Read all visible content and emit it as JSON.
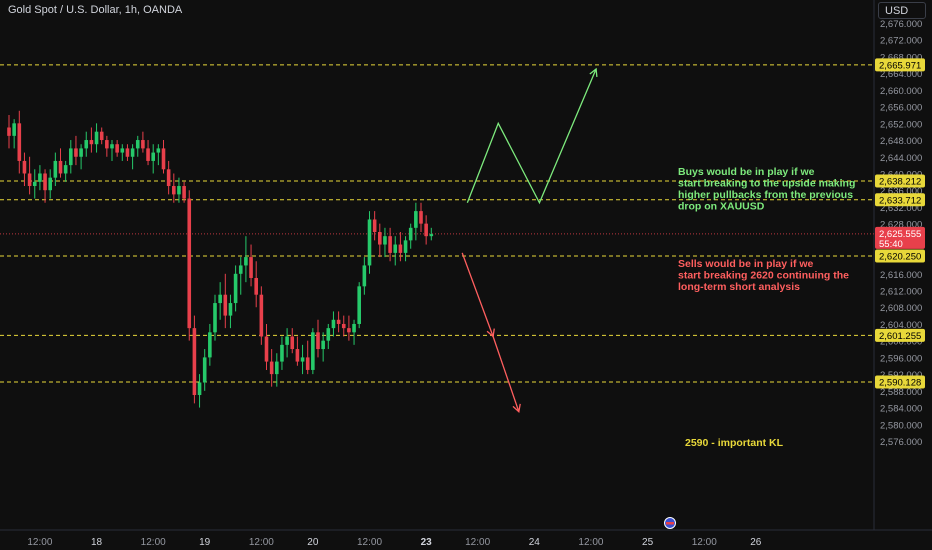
{
  "header": {
    "title": "Gold Spot / U.S. Dollar, 1h, OANDA",
    "currency": "USD"
  },
  "colors": {
    "background": "#0f0f0f",
    "up": "#26c96a",
    "down": "#e8404b",
    "level": "#e8d83a",
    "buy": "#7dea7d",
    "sell": "#ff5f5f",
    "text": "#b2b5be"
  },
  "chart_data": {
    "type": "candlestick",
    "ylim": [
      2574,
      2678
    ],
    "yticks": [
      2576,
      2580,
      2584,
      2588,
      2592,
      2596,
      2600,
      2604,
      2608,
      2612,
      2616,
      2620,
      2624,
      2628,
      2632,
      2636,
      2640,
      2644,
      2648,
      2652,
      2656,
      2660,
      2664,
      2668,
      2672,
      2676
    ],
    "xticks": [
      {
        "slot": 6,
        "label": "12:00"
      },
      {
        "slot": 17,
        "label": "18"
      },
      {
        "slot": 28,
        "label": "12:00"
      },
      {
        "slot": 38,
        "label": "19"
      },
      {
        "slot": 49,
        "label": "12:00"
      },
      {
        "slot": 59,
        "label": "20"
      },
      {
        "slot": 70,
        "label": "12:00"
      },
      {
        "slot": 81,
        "label": "23"
      },
      {
        "slot": 91,
        "label": "12:00"
      },
      {
        "slot": 102,
        "label": "24"
      },
      {
        "slot": 113,
        "label": "12:00"
      },
      {
        "slot": 124,
        "label": "25"
      },
      {
        "slot": 135,
        "label": "12:00"
      },
      {
        "slot": 145,
        "label": "26"
      }
    ],
    "candles": [
      [
        2651,
        2654,
        2646,
        2649
      ],
      [
        2649,
        2653,
        2646,
        2652
      ],
      [
        2652,
        2655,
        2640,
        2643
      ],
      [
        2643,
        2645,
        2637,
        2640
      ],
      [
        2640,
        2644,
        2635,
        2637
      ],
      [
        2637,
        2641,
        2634,
        2638
      ],
      [
        2638,
        2642,
        2636,
        2640
      ],
      [
        2640,
        2641,
        2633,
        2636
      ],
      [
        2636,
        2641,
        2634,
        2639
      ],
      [
        2639,
        2645,
        2637,
        2643
      ],
      [
        2643,
        2646,
        2639,
        2640
      ],
      [
        2640,
        2643,
        2638,
        2642
      ],
      [
        2642,
        2648,
        2640,
        2646
      ],
      [
        2646,
        2649,
        2642,
        2644
      ],
      [
        2644,
        2647,
        2641,
        2646
      ],
      [
        2646,
        2650,
        2644,
        2648
      ],
      [
        2648,
        2651,
        2645,
        2647
      ],
      [
        2647,
        2652,
        2645,
        2650
      ],
      [
        2650,
        2651,
        2647,
        2648
      ],
      [
        2648,
        2649,
        2644,
        2646
      ],
      [
        2646,
        2648,
        2643,
        2647
      ],
      [
        2647,
        2648,
        2644,
        2645
      ],
      [
        2645,
        2647,
        2643,
        2646
      ],
      [
        2646,
        2647,
        2643,
        2644
      ],
      [
        2644,
        2647,
        2641,
        2646
      ],
      [
        2646,
        2649,
        2644,
        2648
      ],
      [
        2648,
        2650,
        2645,
        2646
      ],
      [
        2646,
        2648,
        2642,
        2643
      ],
      [
        2643,
        2647,
        2640,
        2645
      ],
      [
        2645,
        2647,
        2642,
        2646
      ],
      [
        2646,
        2648,
        2640,
        2641
      ],
      [
        2641,
        2643,
        2635,
        2637
      ],
      [
        2637,
        2640,
        2633,
        2635
      ],
      [
        2635,
        2639,
        2633,
        2637
      ],
      [
        2637,
        2638,
        2633,
        2634
      ],
      [
        2634,
        2636,
        2600,
        2603
      ],
      [
        2603,
        2606,
        2585,
        2587
      ],
      [
        2587,
        2592,
        2584,
        2590
      ],
      [
        2590,
        2598,
        2588,
        2596
      ],
      [
        2596,
        2604,
        2594,
        2602
      ],
      [
        2602,
        2611,
        2600,
        2609
      ],
      [
        2609,
        2614,
        2605,
        2611
      ],
      [
        2611,
        2616,
        2603,
        2606
      ],
      [
        2606,
        2611,
        2603,
        2609
      ],
      [
        2609,
        2618,
        2607,
        2616
      ],
      [
        2616,
        2620,
        2611,
        2618
      ],
      [
        2618,
        2625,
        2614,
        2620
      ],
      [
        2620,
        2623,
        2613,
        2615
      ],
      [
        2615,
        2619,
        2608,
        2611
      ],
      [
        2611,
        2613,
        2599,
        2601
      ],
      [
        2601,
        2604,
        2593,
        2595
      ],
      [
        2595,
        2598,
        2589,
        2592
      ],
      [
        2592,
        2597,
        2589,
        2595
      ],
      [
        2595,
        2601,
        2593,
        2599
      ],
      [
        2599,
        2603,
        2596,
        2601
      ],
      [
        2601,
        2603,
        2597,
        2598
      ],
      [
        2598,
        2601,
        2594,
        2595
      ],
      [
        2595,
        2599,
        2592,
        2596
      ],
      [
        2596,
        2600,
        2592,
        2593
      ],
      [
        2593,
        2603,
        2592,
        2602
      ],
      [
        2602,
        2605,
        2596,
        2598
      ],
      [
        2598,
        2602,
        2595,
        2600
      ],
      [
        2600,
        2604,
        2598,
        2603
      ],
      [
        2603,
        2607,
        2601,
        2605
      ],
      [
        2605,
        2607,
        2602,
        2604
      ],
      [
        2604,
        2606,
        2601,
        2603
      ],
      [
        2603,
        2606,
        2600,
        2602
      ],
      [
        2602,
        2605,
        2599,
        2604
      ],
      [
        2604,
        2614,
        2603,
        2613
      ],
      [
        2613,
        2620,
        2611,
        2618
      ],
      [
        2618,
        2631,
        2616,
        2629
      ],
      [
        2629,
        2631,
        2624,
        2626
      ],
      [
        2626,
        2628,
        2620,
        2623
      ],
      [
        2623,
        2627,
        2620,
        2625
      ],
      [
        2625,
        2627,
        2619,
        2621
      ],
      [
        2621,
        2625,
        2618,
        2623
      ],
      [
        2623,
        2626,
        2619,
        2621
      ],
      [
        2621,
        2625,
        2619,
        2624
      ],
      [
        2624,
        2628,
        2622,
        2627
      ],
      [
        2627,
        2633,
        2624,
        2631
      ],
      [
        2631,
        2633,
        2626,
        2628
      ],
      [
        2628,
        2630,
        2623,
        2625
      ],
      [
        2625,
        2627,
        2624,
        2625.5
      ]
    ],
    "levels": [
      {
        "value": 2665.971,
        "label": "2,665.971"
      },
      {
        "value": 2638.212,
        "label": "2,638.212"
      },
      {
        "value": 2633.712,
        "label": "2,633.712"
      },
      {
        "value": 2620.25,
        "label": "2,620.250"
      },
      {
        "value": 2601.255,
        "label": "2,601.255"
      },
      {
        "value": 2590.128,
        "label": "2,590.128"
      }
    ],
    "current": {
      "value": 2625.555,
      "label": "2,625.555",
      "countdown": "55:40"
    },
    "buy_path": [
      [
        89,
        2633
      ],
      [
        95,
        2652
      ],
      [
        103,
        2633
      ],
      [
        114,
        2665
      ]
    ],
    "sell_path": [
      [
        88,
        2621
      ],
      [
        94,
        2601
      ],
      [
        99,
        2583
      ]
    ],
    "annotations": [
      {
        "id": "buy",
        "lines": [
          "Buys would be in play if we",
          "start breaking to the upside making",
          "higher pullbacks from the previous",
          "drop on XAUUSD"
        ]
      },
      {
        "id": "sell",
        "lines": [
          "Sells would be in play if we",
          "start breaking 2620 continuing the",
          "long-term short analysis"
        ]
      },
      {
        "id": "kl",
        "lines": [
          "2590 - important KL"
        ]
      }
    ]
  }
}
